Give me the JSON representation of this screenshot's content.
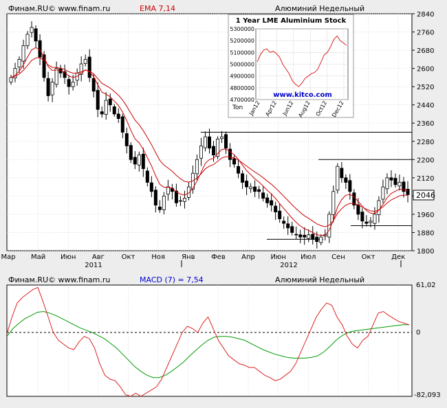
{
  "top_panel": {
    "source": "Финам.RU© www.finam.ru",
    "indicator_label": "EMA 7,14",
    "instrument": "Алюминий Недельный",
    "last_value": "2046"
  },
  "bottom_panel": {
    "source": "Финам.RU© www.finam.ru",
    "indicator_label": "MACD (7) = 7,54",
    "instrument": "Алюминий Недельный",
    "macd_max": "61,02",
    "macd_zero": "0",
    "macd_min": "-82,093"
  },
  "inset": {
    "title": "1 Year LME Aluminium Stock",
    "unit_label": "Ton",
    "link": "www.kitco.com"
  },
  "colors": {
    "bg": "#ededed",
    "plot_bg": "#ffffff",
    "candle": "#000000",
    "ema_fast": "#cc0000",
    "ema_slow": "#cc0000",
    "macd": "#dd2222",
    "signal": "#009900",
    "link": "#0000cc"
  },
  "chart_data": [
    {
      "type": "candlestick",
      "name": "Алюминий Недельный",
      "ylim": [
        1800,
        2840
      ],
      "y_ticks": [
        2840,
        2760,
        2680,
        2600,
        2520,
        2440,
        2360,
        2280,
        2200,
        2120,
        2040,
        1960,
        1880,
        1800
      ],
      "x_tick_labels": [
        "Мар",
        "Май",
        "Июн",
        "Авг",
        "Окт",
        "Ноя",
        "Янв",
        "Фев",
        "Апр",
        "Июн",
        "Июл",
        "Сен",
        "Окт",
        "Дек"
      ],
      "year_labels": [
        "2011",
        "2012"
      ],
      "close": [
        2560,
        2600,
        2640,
        2700,
        2750,
        2780,
        2720,
        2650,
        2560,
        2480,
        2540,
        2600,
        2580,
        2560,
        2520,
        2540,
        2580,
        2620,
        2640,
        2560,
        2500,
        2420,
        2400,
        2460,
        2440,
        2400,
        2380,
        2320,
        2260,
        2200,
        2180,
        2220,
        2160,
        2100,
        2060,
        2000,
        1980,
        2040,
        2080,
        2060,
        2010,
        2020,
        2030,
        2080,
        2140,
        2200,
        2260,
        2300,
        2250,
        2220,
        2290,
        2300,
        2250,
        2200,
        2180,
        2140,
        2100,
        2080,
        2080,
        2060,
        2060,
        2030,
        2010,
        2000,
        1970,
        1940,
        1920,
        1900,
        1880,
        1870,
        1860,
        1860,
        1870,
        1850,
        1840,
        1860,
        1870,
        1960,
        2060,
        2170,
        2120,
        2100,
        2060,
        2000,
        1960,
        1930,
        1920,
        1930,
        1960,
        2020,
        2080,
        2120,
        2110,
        2090,
        2100,
        2060,
        2046
      ],
      "ema_series": [
        {
          "name": "EMA 7",
          "note": "fast"
        },
        {
          "name": "EMA 14",
          "note": "slow"
        }
      ],
      "horizontal_levels": [
        2320,
        2200,
        1910,
        1850
      ],
      "last_price": 2046
    },
    {
      "type": "line",
      "name": "MACD (7)",
      "ylim": [
        -82.093,
        61.02
      ],
      "series": [
        {
          "name": "MACD",
          "values": [
            -2,
            20,
            38,
            45,
            50,
            55,
            58,
            40,
            20,
            0,
            -10,
            -15,
            -20,
            -22,
            -12,
            -5,
            -8,
            -20,
            -40,
            -55,
            -60,
            -62,
            -70,
            -80,
            -82,
            -78,
            -82,
            -78,
            -74,
            -70,
            -60,
            -45,
            -30,
            -15,
            0,
            8,
            5,
            0,
            12,
            20,
            5,
            -10,
            -20,
            -30,
            -35,
            -40,
            -42,
            -45,
            -45,
            -50,
            -55,
            -58,
            -62,
            -60,
            -55,
            -50,
            -40,
            -25,
            -10,
            5,
            20,
            30,
            38,
            35,
            20,
            10,
            -5,
            -15,
            -20,
            -10,
            -5,
            10,
            25,
            27,
            22,
            18,
            14,
            12,
            10
          ]
        },
        {
          "name": "Signal",
          "values": [
            -5,
            5,
            12,
            18,
            22,
            26,
            27,
            25,
            22,
            18,
            14,
            10,
            6,
            3,
            0,
            -4,
            -8,
            -14,
            -20,
            -28,
            -36,
            -44,
            -50,
            -55,
            -58,
            -58,
            -55,
            -50,
            -44,
            -38,
            -30,
            -23,
            -16,
            -10,
            -6,
            -5,
            -5,
            -6,
            -8,
            -10,
            -14,
            -18,
            -22,
            -25,
            -28,
            -30,
            -32,
            -33,
            -33,
            -33,
            -32,
            -30,
            -25,
            -18,
            -10,
            -4,
            0,
            2,
            3,
            4,
            5,
            6,
            7,
            8,
            9,
            10,
            10
          ]
        }
      ]
    },
    {
      "type": "line",
      "name": "1 Year LME Aluminium Stock",
      "unit": "Ton",
      "ylim": [
        4700000,
        5300000
      ],
      "y_ticks": [
        5300000,
        5200000,
        5100000,
        5000000,
        4900000,
        4800000,
        4700000
      ],
      "x_tick_labels": [
        "Jan12",
        "Apr12",
        "Jun12",
        "Aug12",
        "Oct12",
        "Dec12"
      ],
      "values": [
        5020000,
        5080000,
        5120000,
        5130000,
        5100000,
        5110000,
        5090000,
        5060000,
        5000000,
        4960000,
        4920000,
        4860000,
        4830000,
        4810000,
        4840000,
        4880000,
        4900000,
        4920000,
        4930000,
        4960000,
        5020000,
        5080000,
        5100000,
        5150000,
        5210000,
        5240000,
        5200000,
        5180000,
        5160000
      ]
    }
  ]
}
